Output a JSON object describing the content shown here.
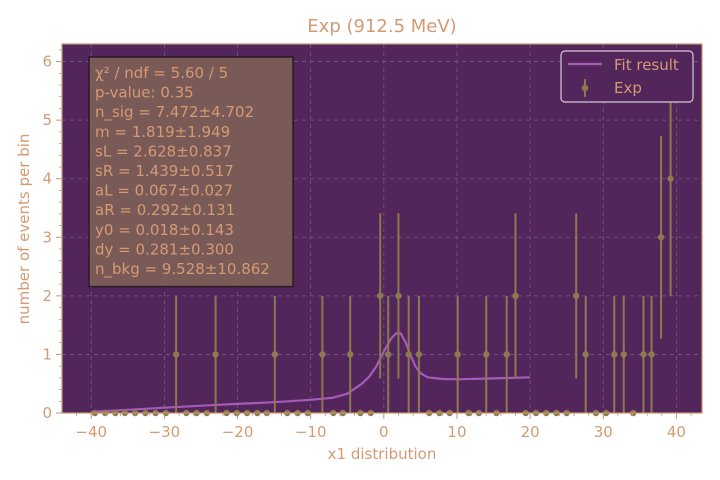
{
  "chart_data": {
    "type": "scatter",
    "title": "Exp (912.5 MeV)",
    "xlabel": "x1 distribution",
    "ylabel": "number of events per bin",
    "xlim": [
      -44,
      43.5
    ],
    "ylim": [
      0,
      6.3
    ],
    "x_ticks": [
      "−40",
      "−30",
      "−20",
      "−10",
      "0",
      "10",
      "20",
      "30",
      "40"
    ],
    "y_ticks": [
      "0",
      "1",
      "2",
      "3",
      "4",
      "5",
      "6"
    ],
    "grid": true,
    "legend_position": "top-right",
    "series": [
      {
        "name": "Exp",
        "kind": "errorbar",
        "color": "#8c7a4e",
        "points": [
          {
            "x": -39.5,
            "y": 0,
            "err": 0
          },
          {
            "x": -38.1,
            "y": 0,
            "err": 0
          },
          {
            "x": -36.7,
            "y": 0,
            "err": 0
          },
          {
            "x": -35.4,
            "y": 0,
            "err": 0
          },
          {
            "x": -34.0,
            "y": 0,
            "err": 0
          },
          {
            "x": -32.6,
            "y": 0,
            "err": 0
          },
          {
            "x": -31.2,
            "y": 0,
            "err": 0
          },
          {
            "x": -29.8,
            "y": 0,
            "err": 0
          },
          {
            "x": -28.4,
            "y": 1,
            "err": 1
          },
          {
            "x": -27.0,
            "y": 0,
            "err": 0
          },
          {
            "x": -25.6,
            "y": 0,
            "err": 0
          },
          {
            "x": -24.2,
            "y": 0,
            "err": 0
          },
          {
            "x": -23.0,
            "y": 1,
            "err": 1
          },
          {
            "x": -21.5,
            "y": 0,
            "err": 0
          },
          {
            "x": -20.1,
            "y": 0,
            "err": 0
          },
          {
            "x": -18.7,
            "y": 0,
            "err": 0
          },
          {
            "x": -17.3,
            "y": 0,
            "err": 0
          },
          {
            "x": -16.0,
            "y": 0,
            "err": 0
          },
          {
            "x": -14.9,
            "y": 1,
            "err": 1
          },
          {
            "x": -13.2,
            "y": 0,
            "err": 0
          },
          {
            "x": -11.8,
            "y": 0,
            "err": 0
          },
          {
            "x": -10.4,
            "y": 0,
            "err": 0
          },
          {
            "x": -8.4,
            "y": 1,
            "err": 1
          },
          {
            "x": -6.9,
            "y": 0,
            "err": 0
          },
          {
            "x": -5.6,
            "y": 0,
            "err": 0
          },
          {
            "x": -4.6,
            "y": 1,
            "err": 1
          },
          {
            "x": -3.2,
            "y": 0,
            "err": 0
          },
          {
            "x": -1.8,
            "y": 0,
            "err": 0
          },
          {
            "x": -0.5,
            "y": 2,
            "err": 1.41
          },
          {
            "x": 0.6,
            "y": 1,
            "err": 1
          },
          {
            "x": 2.0,
            "y": 2,
            "err": 1.41
          },
          {
            "x": 3.4,
            "y": 1,
            "err": 1
          },
          {
            "x": 4.8,
            "y": 1,
            "err": 1
          },
          {
            "x": 6.2,
            "y": 0,
            "err": 0
          },
          {
            "x": 7.6,
            "y": 0,
            "err": 0
          },
          {
            "x": 9.0,
            "y": 0,
            "err": 0
          },
          {
            "x": 10.1,
            "y": 1,
            "err": 1
          },
          {
            "x": 11.6,
            "y": 0,
            "err": 0
          },
          {
            "x": 13.0,
            "y": 0,
            "err": 0
          },
          {
            "x": 14.0,
            "y": 1,
            "err": 1
          },
          {
            "x": 15.4,
            "y": 0,
            "err": 0
          },
          {
            "x": 16.8,
            "y": 1,
            "err": 1
          },
          {
            "x": 18.0,
            "y": 2,
            "err": 1.41
          },
          {
            "x": 19.4,
            "y": 0,
            "err": 0
          },
          {
            "x": 20.8,
            "y": 0,
            "err": 0
          },
          {
            "x": 22.2,
            "y": 0,
            "err": 0
          },
          {
            "x": 23.6,
            "y": 0,
            "err": 0
          },
          {
            "x": 25.0,
            "y": 0,
            "err": 0
          },
          {
            "x": 26.3,
            "y": 2,
            "err": 1.41
          },
          {
            "x": 27.6,
            "y": 1,
            "err": 1
          },
          {
            "x": 29.0,
            "y": 0,
            "err": 0
          },
          {
            "x": 30.4,
            "y": 0,
            "err": 0
          },
          {
            "x": 31.5,
            "y": 1,
            "err": 1
          },
          {
            "x": 32.8,
            "y": 1,
            "err": 1
          },
          {
            "x": 34.1,
            "y": 0,
            "err": 0
          },
          {
            "x": 35.5,
            "y": 1,
            "err": 1
          },
          {
            "x": 36.6,
            "y": 1,
            "err": 1
          },
          {
            "x": 37.9,
            "y": 3,
            "err": 1.73
          },
          {
            "x": 39.2,
            "y": 4,
            "err": 2
          }
        ]
      },
      {
        "name": "Fit result",
        "kind": "line",
        "color": "#a45cb8",
        "points": [
          [
            -40,
            0.02
          ],
          [
            -35,
            0.055
          ],
          [
            -30,
            0.09
          ],
          [
            -25,
            0.125
          ],
          [
            -20,
            0.155
          ],
          [
            -15,
            0.185
          ],
          [
            -10,
            0.225
          ],
          [
            -7,
            0.26
          ],
          [
            -5,
            0.33
          ],
          [
            -3,
            0.5
          ],
          [
            -2,
            0.62
          ],
          [
            -1,
            0.8
          ],
          [
            0,
            1.05
          ],
          [
            1,
            1.27
          ],
          [
            1.7,
            1.36
          ],
          [
            2.3,
            1.36
          ],
          [
            3,
            1.2
          ],
          [
            3.6,
            1.0
          ],
          [
            4.3,
            0.8
          ],
          [
            5,
            0.68
          ],
          [
            6,
            0.61
          ],
          [
            8,
            0.58
          ],
          [
            10,
            0.575
          ],
          [
            15,
            0.59
          ],
          [
            20,
            0.61
          ]
        ]
      }
    ],
    "annotation_box": {
      "lines": [
        "χ² / ndf = 5.60 / 5",
        "p-value: 0.35",
        "n_sig = 7.472±4.702",
        "m = 1.819±1.949",
        "sL = 2.628±0.837",
        "sR = 1.439±0.517",
        "aL = 0.067±0.027",
        "aR = 0.292±0.131",
        "y0 = 0.018±0.143",
        "dy = 0.281±0.300",
        "n_bkg = 9.528±10.862"
      ]
    }
  },
  "colors": {
    "plot_bg": "#52265a",
    "spine": "#c8956d",
    "text": "#d49a73",
    "grid": "#6e5a8c",
    "box_bg": "#7a5a56",
    "box_border": "#2a1a22"
  }
}
